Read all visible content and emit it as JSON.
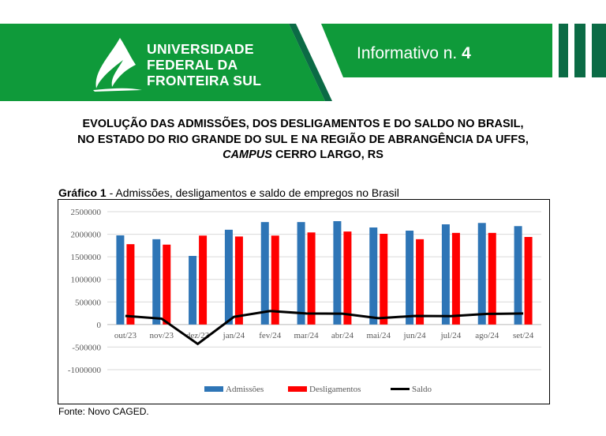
{
  "header": {
    "logo_lines": [
      "UNIVERSIDADE",
      "FEDERAL DA",
      "FRONTEIRA SUL"
    ],
    "info_label": "Informativo n.",
    "info_number": "4",
    "colors": {
      "green": "#0f9a3a",
      "dark_green": "#0b6b45"
    }
  },
  "title": {
    "line1": "EVOLUÇÃO DAS ADMISSÕES, DOS DESLIGAMENTOS E DO SALDO NO BRASIL,",
    "line2": "NO ESTADO DO RIO GRANDE DO SUL E NA REGIÃO DE ABRANGÊNCIA DA UFFS,",
    "line3_italic": "CAMPUS",
    "line3_rest": " CERRO LARGO, RS"
  },
  "caption": {
    "bold": "Gráfico 1",
    "rest": " - Admissões, desligamentos e saldo de empregos no Brasil"
  },
  "source": "Fonte: Novo CAGED.",
  "chart_data": {
    "type": "bar",
    "title": "Admissões, desligamentos e saldo de empregos no Brasil",
    "categories": [
      "out/23",
      "nov/23",
      "dez/23",
      "jan/24",
      "fev/24",
      "mar/24",
      "abr/24",
      "mai/24",
      "jun/24",
      "jul/24",
      "ago/24",
      "set/24"
    ],
    "series": [
      {
        "name": "Admissões",
        "type": "bar",
        "color": "#2e75b6",
        "values": [
          1975000,
          1890000,
          1520000,
          2100000,
          2270000,
          2270000,
          2290000,
          2150000,
          2080000,
          2220000,
          2250000,
          2180000
        ]
      },
      {
        "name": "Desligamentos",
        "type": "bar",
        "color": "#ff0000",
        "values": [
          1780000,
          1770000,
          1970000,
          1950000,
          1970000,
          2040000,
          2060000,
          2010000,
          1890000,
          2030000,
          2030000,
          1940000
        ]
      },
      {
        "name": "Saldo",
        "type": "line",
        "color": "#000000",
        "values": [
          190000,
          130000,
          -430000,
          170000,
          300000,
          245000,
          240000,
          140000,
          190000,
          185000,
          235000,
          245000
        ]
      }
    ],
    "yticks": [
      2500000,
      2000000,
      1500000,
      1000000,
      500000,
      0,
      -500000,
      -1000000
    ],
    "ylim": [
      -1000000,
      2500000
    ],
    "grid": true,
    "legend": "bottom"
  }
}
